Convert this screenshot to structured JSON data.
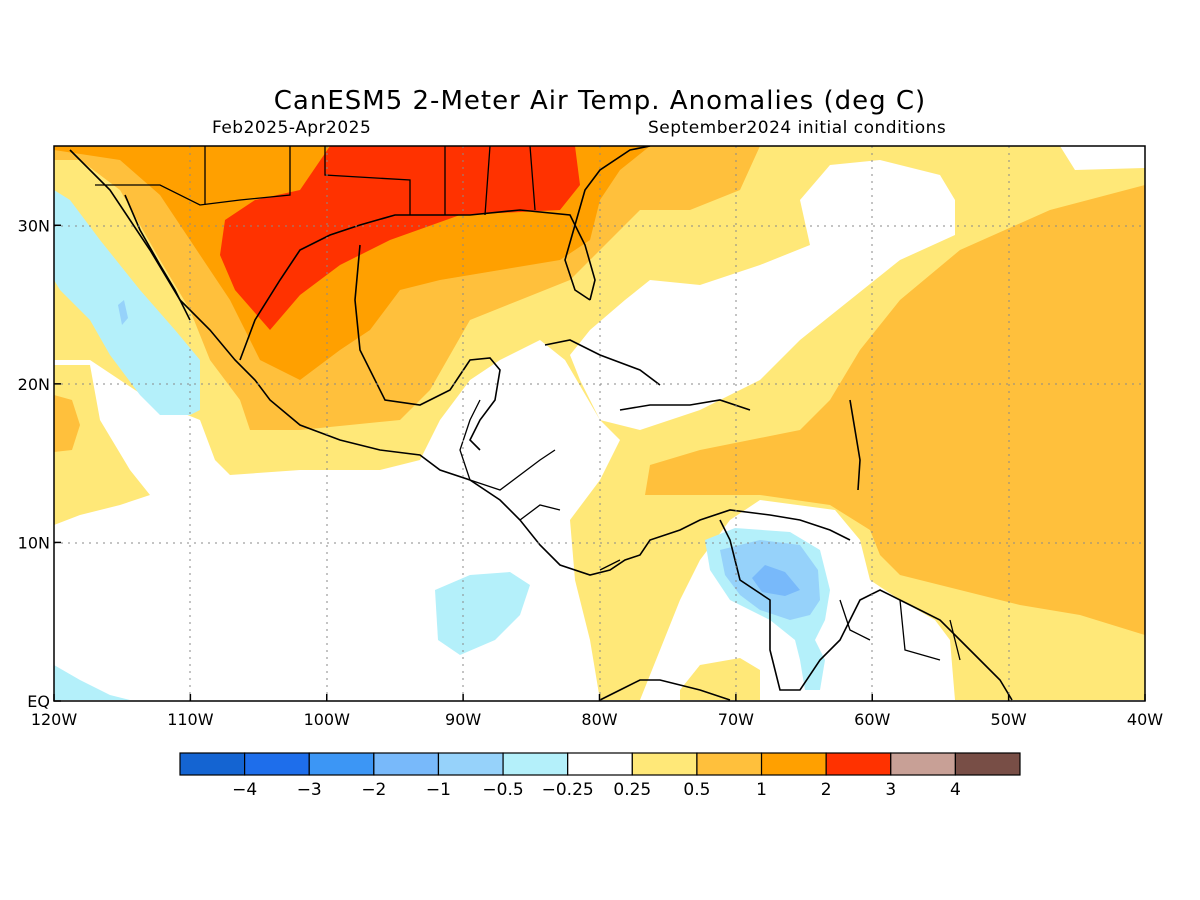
{
  "title": "CanESM5 2-Meter Air Temp. Anomalies (deg C)",
  "period": "Feb2025-Apr2025",
  "init": "September2024 initial conditions",
  "map": {
    "lon_range": [
      -120,
      -40
    ],
    "lat_range": [
      0,
      35
    ],
    "lon_ticks": [
      "120W",
      "110W",
      "100W",
      "90W",
      "80W",
      "70W",
      "60W",
      "50W",
      "40W"
    ],
    "lat_ticks": [
      "EQ",
      "10N",
      "20N",
      "30N"
    ],
    "gridlines": true
  },
  "colorbar": {
    "colors": [
      "#1464d2",
      "#1e6eeb",
      "#3c96f5",
      "#78b9fa",
      "#96d2fa",
      "#b4f0fa",
      "#ffffff",
      "#ffe878",
      "#ffc03c",
      "#ffa000",
      "#ff3200",
      "#c8a096",
      "#784e46"
    ],
    "labels": [
      "−4",
      "−3",
      "−2",
      "−1",
      "−0.5",
      "−0.25",
      "0.25",
      "0.5",
      "1",
      "2",
      "3",
      "4"
    ]
  },
  "colors": {
    "warm_05": "#ffe878",
    "warm_1": "#ffc03c",
    "warm_2": "#ffa000",
    "warm_3": "#ff3200",
    "cool_025": "#b4f0fa",
    "cool_05": "#96d2fa",
    "cool_1": "#78b9fa"
  }
}
